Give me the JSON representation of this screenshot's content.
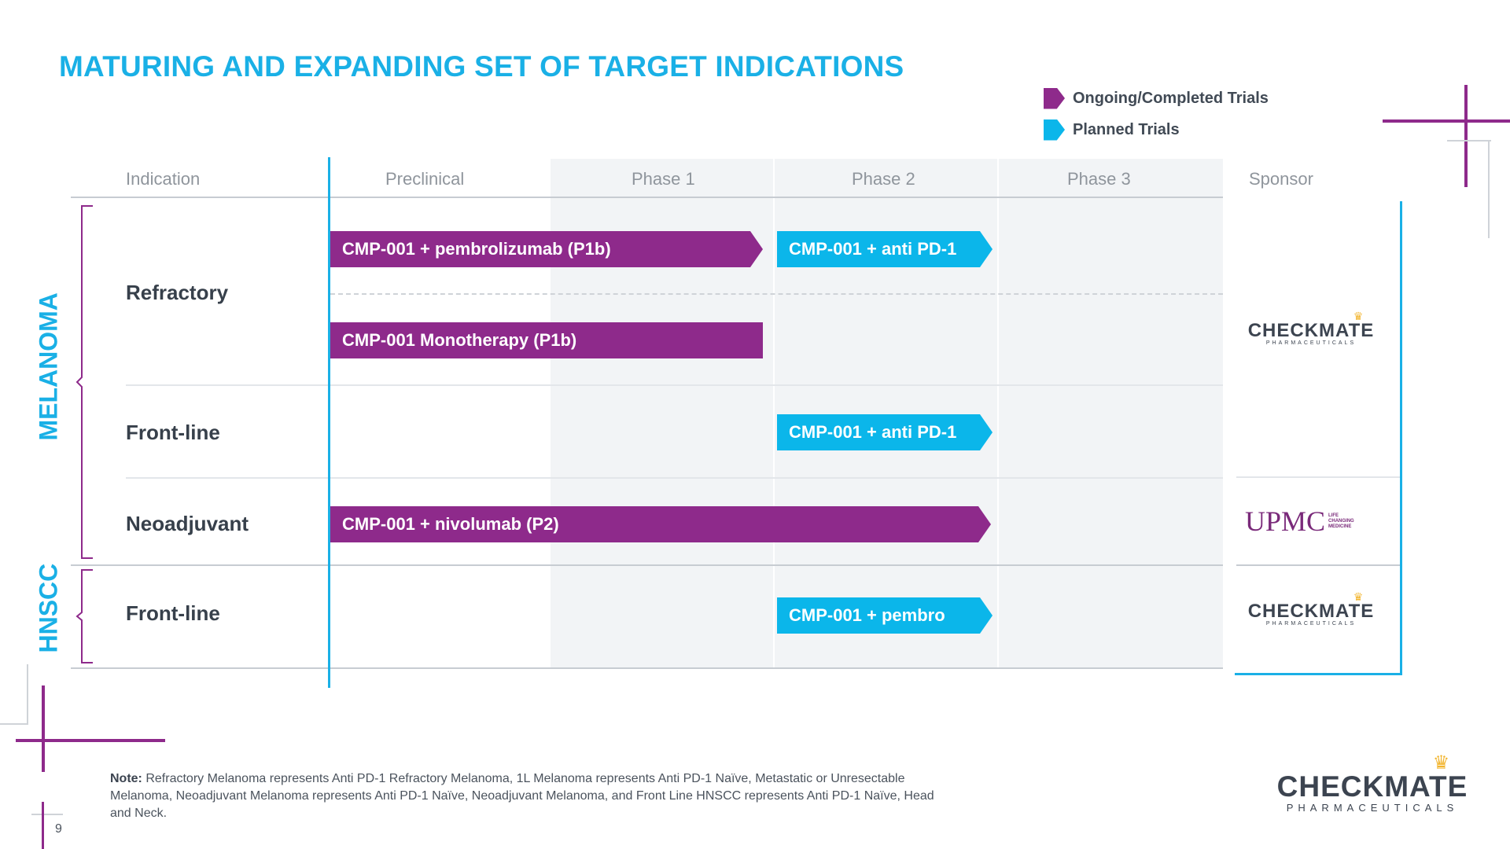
{
  "title": "MATURING AND EXPANDING SET OF TARGET INDICATIONS",
  "legend": [
    {
      "label": "Ongoing/Completed Trials",
      "color": "#8e2a8b"
    },
    {
      "label": "Planned Trials",
      "color": "#0bb6ea"
    }
  ],
  "columns": {
    "indication": "Indication",
    "preclinical": "Preclinical",
    "phase1": "Phase 1",
    "phase2": "Phase 2",
    "phase3": "Phase 3",
    "sponsor": "Sponsor"
  },
  "groups": {
    "melanoma": "MELANOMA",
    "hnscc": "HNSCC"
  },
  "rows": {
    "refractory": "Refractory",
    "frontline_melanoma": "Front-line",
    "neoadjuvant": "Neoadjuvant",
    "frontline_hnscc": "Front-line"
  },
  "bars": {
    "pembrolizumab_p1b": "CMP-001 + pembrolizumab (P1b)",
    "anti_pd1_refractory": "CMP-001 + anti PD-1",
    "monotherapy_p1b": "CMP-001 Monotherapy (P1b)",
    "anti_pd1_frontline": "CMP-001 + anti PD-1",
    "nivolumab_p2": "CMP-001 + nivolumab (P2)",
    "pembro_hnscc": "CMP-001 + pembro"
  },
  "sponsors": {
    "checkmate_word": "CHECKMATE",
    "checkmate_sub": "PHARMACEUTICALS",
    "upmc_word": "UPMC",
    "upmc_tag_1": "LIFE",
    "upmc_tag_2": "CHANGING",
    "upmc_tag_3": "MEDICINE"
  },
  "footer": {
    "note_label": "Note:",
    "note_text": "Refractory Melanoma represents Anti PD-1 Refractory Melanoma, 1L Melanoma represents Anti PD-1 Naïve, Metastatic or Unresectable Melanoma, Neoadjuvant Melanoma represents Anti PD-1 Naïve, Neoadjuvant Melanoma, and Front Line HNSCC represents Anti PD-1 Naïve, Head and Neck.",
    "page_number": "9",
    "brand_word": "CHECKMATE",
    "brand_sub": "PHARMACEUTICALS"
  },
  "colors": {
    "accent_blue": "#1ab0e6",
    "ongoing_purple": "#8e2a8b",
    "planned_cyan": "#0bb6ea"
  }
}
